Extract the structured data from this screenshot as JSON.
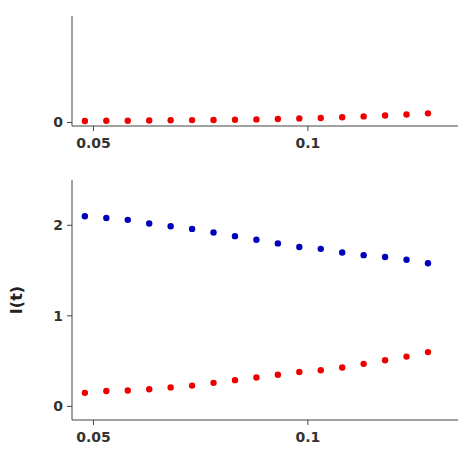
{
  "chart_data": [
    {
      "type": "scatter",
      "x": [
        0.048,
        0.053,
        0.058,
        0.063,
        0.068,
        0.073,
        0.078,
        0.083,
        0.088,
        0.093,
        0.098,
        0.103,
        0.108,
        0.113,
        0.118,
        0.123,
        0.128
      ],
      "series": [
        {
          "color": "#ee0000",
          "values": [
            0.02,
            0.025,
            0.025,
            0.028,
            0.03,
            0.033,
            0.035,
            0.038,
            0.043,
            0.048,
            0.055,
            0.063,
            0.073,
            0.085,
            0.098,
            0.112,
            0.128
          ]
        }
      ],
      "xlim": [
        0.045,
        0.135
      ],
      "xticks": [
        0.05,
        0.1
      ],
      "ylim": [
        -0.05,
        1.5
      ],
      "yticks": [
        0
      ]
    },
    {
      "type": "scatter",
      "ylabel": "I(t)",
      "x": [
        0.048,
        0.053,
        0.058,
        0.063,
        0.068,
        0.073,
        0.078,
        0.083,
        0.088,
        0.093,
        0.098,
        0.103,
        0.108,
        0.113,
        0.118,
        0.123,
        0.128
      ],
      "series": [
        {
          "color": "#0000bb",
          "values": [
            2.1,
            2.08,
            2.06,
            2.02,
            1.99,
            1.96,
            1.92,
            1.88,
            1.84,
            1.8,
            1.76,
            1.74,
            1.7,
            1.67,
            1.65,
            1.62,
            1.58
          ]
        },
        {
          "color": "#ee0000",
          "values": [
            0.15,
            0.17,
            0.175,
            0.19,
            0.21,
            0.23,
            0.26,
            0.29,
            0.32,
            0.35,
            0.38,
            0.4,
            0.43,
            0.47,
            0.51,
            0.55,
            0.6
          ]
        }
      ],
      "xlim": [
        0.045,
        0.135
      ],
      "xticks": [
        0.05,
        0.1
      ],
      "ylim": [
        -0.15,
        2.5
      ],
      "yticks": [
        0,
        1,
        2
      ]
    }
  ]
}
